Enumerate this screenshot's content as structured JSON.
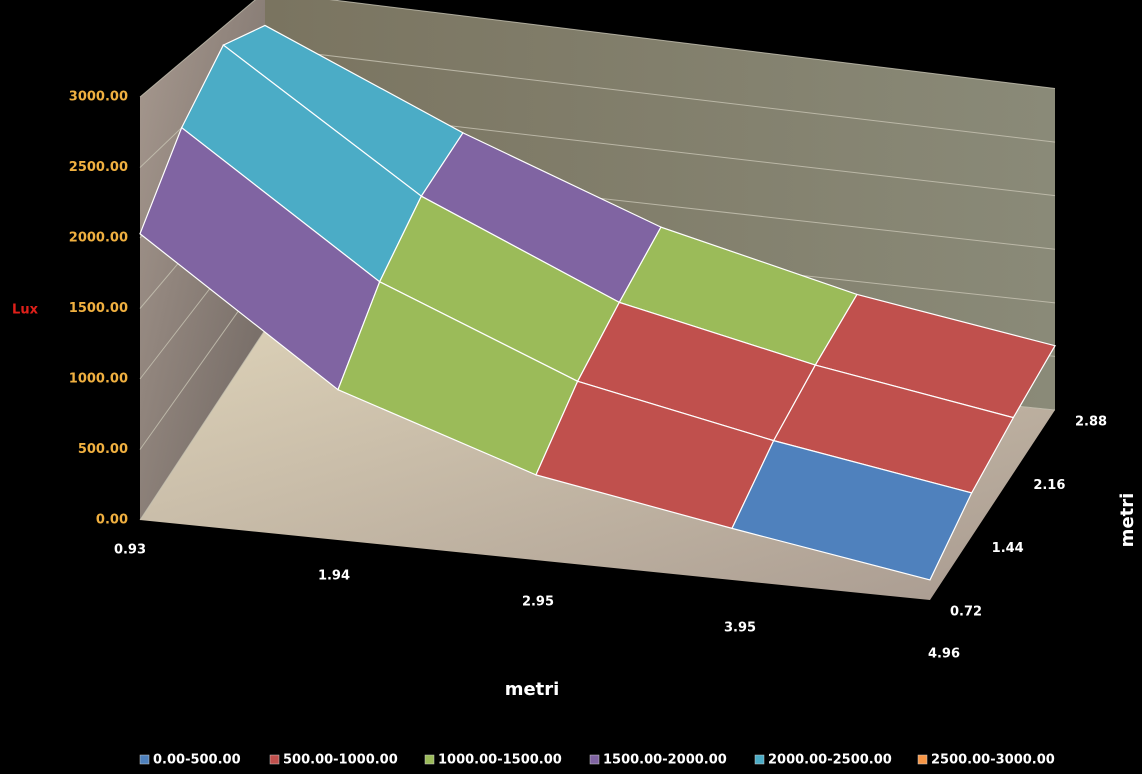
{
  "chart_data": {
    "type": "surface",
    "value_label": "Lux",
    "x_label": "metri",
    "depth_label": "metri",
    "x": [
      0.93,
      1.94,
      2.95,
      3.95,
      4.96
    ],
    "depth": [
      0.72,
      1.44,
      2.16,
      2.88
    ],
    "values": [
      [
        2030,
        1080,
        620,
        380,
        150
      ],
      [
        2500,
        1500,
        900,
        600,
        350
      ],
      [
        2850,
        1800,
        1100,
        750,
        480
      ],
      [
        2700,
        1950,
        1300,
        880,
        600
      ]
    ],
    "xlim": [
      0.93,
      4.96
    ],
    "depthlim": [
      0.72,
      2.88
    ],
    "ylim": [
      0,
      3000
    ],
    "yticks": [
      {
        "value": 0,
        "label": "0.00"
      },
      {
        "value": 500,
        "label": "500.00"
      },
      {
        "value": 1000,
        "label": "1000.00"
      },
      {
        "value": 1500,
        "label": "1500.00"
      },
      {
        "value": 2000,
        "label": "2000.00"
      },
      {
        "value": 2500,
        "label": "2500.00"
      },
      {
        "value": 3000,
        "label": "3000.00"
      }
    ],
    "grid": true,
    "legend": [
      {
        "name": "0.00-500.00",
        "color": "#4f81bd"
      },
      {
        "name": "500.00-1000.00",
        "color": "#c0504d"
      },
      {
        "name": "1000.00-1500.00",
        "color": "#9bbb59"
      },
      {
        "name": "1500.00-2000.00",
        "color": "#8064a2"
      },
      {
        "name": "2000.00-2500.00",
        "color": "#4bacc6"
      },
      {
        "name": "2500.00-3000.00",
        "color": "#f79646"
      }
    ]
  }
}
